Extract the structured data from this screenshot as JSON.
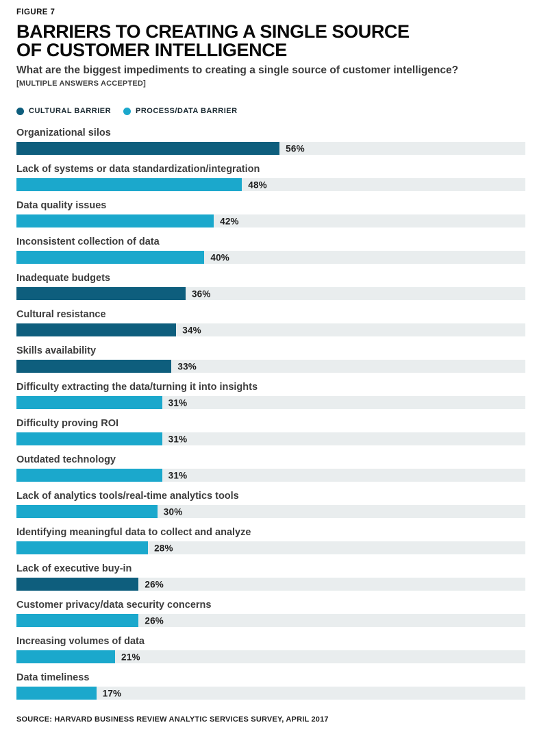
{
  "figure_label": "FIGURE 7",
  "title": "BARRIERS TO CREATING A SINGLE SOURCE OF CUSTOMER INTELLIGENCE",
  "subtitle": "What are the biggest impediments to creating a single source of customer intelligence?",
  "note": "[MULTIPLE ANSWERS ACCEPTED]",
  "legend": [
    {
      "label": "CULTURAL BARRIER",
      "color": "#0e5e7d",
      "key": "cultural"
    },
    {
      "label": "PROCESS/DATA BARRIER",
      "color": "#1ba8cc",
      "key": "process"
    }
  ],
  "source": "SOURCE: HARVARD BUSINESS REVIEW ANALYTIC SERVICES SURVEY, APRIL 2017",
  "colors": {
    "cultural_bar": "#0e5e7d",
    "process_bar": "#1ba8cc",
    "track_background": "#e9edee",
    "title_text": "#0a0a0a",
    "label_text": "#3d3d3d"
  },
  "chart_data": {
    "type": "bar",
    "orientation": "horizontal",
    "unit": "%",
    "xlim": [
      0,
      100
    ],
    "grid": false,
    "legend_position": "top",
    "title": "Barriers to creating a single source of customer intelligence",
    "xlabel": "",
    "ylabel": "",
    "series_key": {
      "cultural": "Cultural barrier",
      "process": "Process/data barrier"
    },
    "bars": [
      {
        "label": "Organizational silos",
        "value": 56,
        "display": "56%",
        "category": "cultural"
      },
      {
        "label": "Lack of systems or data standardization/integration",
        "value": 48,
        "display": "48%",
        "category": "process"
      },
      {
        "label": "Data quality issues",
        "value": 42,
        "display": "42%",
        "category": "process"
      },
      {
        "label": "Inconsistent collection of data",
        "value": 40,
        "display": "40%",
        "category": "process"
      },
      {
        "label": "Inadequate budgets",
        "value": 36,
        "display": "36%",
        "category": "cultural"
      },
      {
        "label": "Cultural resistance",
        "value": 34,
        "display": "34%",
        "category": "cultural"
      },
      {
        "label": "Skills availability",
        "value": 33,
        "display": "33%",
        "category": "cultural"
      },
      {
        "label": "Difficulty extracting the data/turning it into insights",
        "value": 31,
        "display": "31%",
        "category": "process"
      },
      {
        "label": "Difficulty proving ROI",
        "value": 31,
        "display": "31%",
        "category": "process"
      },
      {
        "label": "Outdated technology",
        "value": 31,
        "display": "31%",
        "category": "process"
      },
      {
        "label": "Lack of analytics tools/real-time analytics tools",
        "value": 30,
        "display": "30%",
        "category": "process"
      },
      {
        "label": "Identifying meaningful data to collect and analyze",
        "value": 28,
        "display": "28%",
        "category": "process"
      },
      {
        "label": "Lack of executive buy-in",
        "value": 26,
        "display": "26%",
        "category": "cultural"
      },
      {
        "label": "Customer privacy/data security concerns",
        "value": 26,
        "display": "26%",
        "category": "process"
      },
      {
        "label": "Increasing volumes of data",
        "value": 21,
        "display": "21%",
        "category": "process"
      },
      {
        "label": "Data timeliness",
        "value": 17,
        "display": "17%",
        "category": "process"
      }
    ]
  }
}
